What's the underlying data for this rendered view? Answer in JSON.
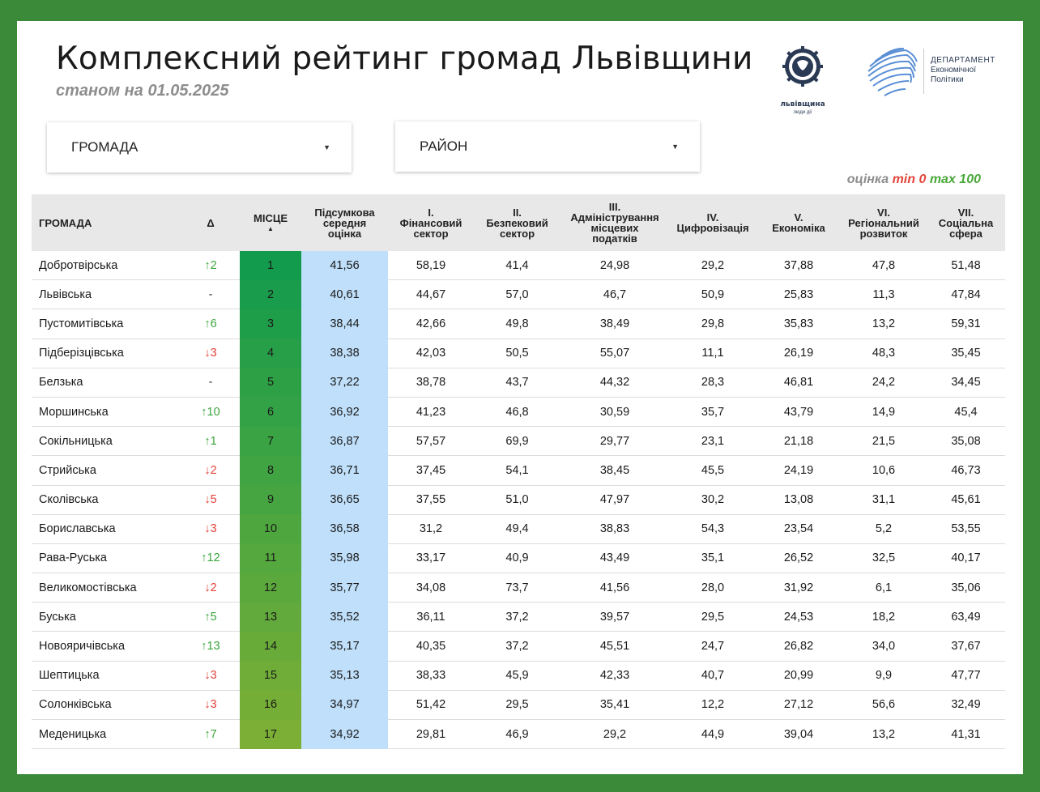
{
  "header": {
    "title": "Комплексний рейтинг громад Львівщини",
    "subtitle": "станом на 01.05.2025",
    "logo_text": "львівщина",
    "logo_subtext": "люди дії",
    "dept": [
      "ДЕПАРТАМЕНТ",
      "Економічної",
      "Політики"
    ]
  },
  "filters": {
    "hromada_label": "ГРОМАДА",
    "raion_label": "РАЙОН"
  },
  "legend": {
    "prefix": "оцінка",
    "min_text": "min 0",
    "max_text": "max 100"
  },
  "colors": {
    "background": "#3a8a3a",
    "avg_column": "#bfdffa",
    "place_top": "#129b4c",
    "place_bottom": "#7caf35",
    "arrow_up": "#3aa43a",
    "arrow_down": "#e0443a"
  },
  "table": {
    "headers": {
      "name": "ГРОМАДА",
      "delta": "Δ",
      "place": "МІСЦЕ",
      "avg": [
        "Підсумкова",
        "середня",
        "оцінка"
      ],
      "c1": [
        "I.",
        "Фінансовий",
        "сектор"
      ],
      "c2": [
        "II.",
        "Безпековий",
        "сектор"
      ],
      "c3": [
        "III.",
        "Адміністрування",
        "місцевих",
        "податків"
      ],
      "c4": [
        "IV.",
        "Цифровізація"
      ],
      "c5": [
        "V.",
        "Економіка"
      ],
      "c6": [
        "VI.",
        "Регіональний",
        "розвиток"
      ],
      "c7": [
        "VII.",
        "Соціальна",
        "сфера"
      ]
    },
    "rows": [
      {
        "name": "Добротвірська",
        "delta": "↑2",
        "dir": "up",
        "place": "1",
        "avg": "41,56",
        "c1": "58,19",
        "c2": "41,4",
        "c3": "24,98",
        "c4": "29,2",
        "c5": "37,88",
        "c6": "47,8",
        "c7": "51,48"
      },
      {
        "name": "Львівська",
        "delta": "-",
        "dir": "same",
        "place": "2",
        "avg": "40,61",
        "c1": "44,67",
        "c2": "57,0",
        "c3": "46,7",
        "c4": "50,9",
        "c5": "25,83",
        "c6": "11,3",
        "c7": "47,84"
      },
      {
        "name": "Пустомитівська",
        "delta": "↑6",
        "dir": "up",
        "place": "3",
        "avg": "38,44",
        "c1": "42,66",
        "c2": "49,8",
        "c3": "38,49",
        "c4": "29,8",
        "c5": "35,83",
        "c6": "13,2",
        "c7": "59,31"
      },
      {
        "name": "Підберізцівська",
        "delta": "↓3",
        "dir": "down",
        "place": "4",
        "avg": "38,38",
        "c1": "42,03",
        "c2": "50,5",
        "c3": "55,07",
        "c4": "11,1",
        "c5": "26,19",
        "c6": "48,3",
        "c7": "35,45"
      },
      {
        "name": "Белзька",
        "delta": "-",
        "dir": "same",
        "place": "5",
        "avg": "37,22",
        "c1": "38,78",
        "c2": "43,7",
        "c3": "44,32",
        "c4": "28,3",
        "c5": "46,81",
        "c6": "24,2",
        "c7": "34,45"
      },
      {
        "name": "Моршинська",
        "delta": "↑10",
        "dir": "up",
        "place": "6",
        "avg": "36,92",
        "c1": "41,23",
        "c2": "46,8",
        "c3": "30,59",
        "c4": "35,7",
        "c5": "43,79",
        "c6": "14,9",
        "c7": "45,4"
      },
      {
        "name": "Сокільницька",
        "delta": "↑1",
        "dir": "up",
        "place": "7",
        "avg": "36,87",
        "c1": "57,57",
        "c2": "69,9",
        "c3": "29,77",
        "c4": "23,1",
        "c5": "21,18",
        "c6": "21,5",
        "c7": "35,08"
      },
      {
        "name": "Стрийська",
        "delta": "↓2",
        "dir": "down",
        "place": "8",
        "avg": "36,71",
        "c1": "37,45",
        "c2": "54,1",
        "c3": "38,45",
        "c4": "45,5",
        "c5": "24,19",
        "c6": "10,6",
        "c7": "46,73"
      },
      {
        "name": "Сколівська",
        "delta": "↓5",
        "dir": "down",
        "place": "9",
        "avg": "36,65",
        "c1": "37,55",
        "c2": "51,0",
        "c3": "47,97",
        "c4": "30,2",
        "c5": "13,08",
        "c6": "31,1",
        "c7": "45,61"
      },
      {
        "name": "Бориславська",
        "delta": "↓3",
        "dir": "down",
        "place": "10",
        "avg": "36,58",
        "c1": "31,2",
        "c2": "49,4",
        "c3": "38,83",
        "c4": "54,3",
        "c5": "23,54",
        "c6": "5,2",
        "c7": "53,55"
      },
      {
        "name": "Рава-Руська",
        "delta": "↑12",
        "dir": "up",
        "place": "11",
        "avg": "35,98",
        "c1": "33,17",
        "c2": "40,9",
        "c3": "43,49",
        "c4": "35,1",
        "c5": "26,52",
        "c6": "32,5",
        "c7": "40,17"
      },
      {
        "name": "Великомостівська",
        "delta": "↓2",
        "dir": "down",
        "place": "12",
        "avg": "35,77",
        "c1": "34,08",
        "c2": "73,7",
        "c3": "41,56",
        "c4": "28,0",
        "c5": "31,92",
        "c6": "6,1",
        "c7": "35,06"
      },
      {
        "name": "Буська",
        "delta": "↑5",
        "dir": "up",
        "place": "13",
        "avg": "35,52",
        "c1": "36,11",
        "c2": "37,2",
        "c3": "39,57",
        "c4": "29,5",
        "c5": "24,53",
        "c6": "18,2",
        "c7": "63,49"
      },
      {
        "name": "Новояричівська",
        "delta": "↑13",
        "dir": "up",
        "place": "14",
        "avg": "35,17",
        "c1": "40,35",
        "c2": "37,2",
        "c3": "45,51",
        "c4": "24,7",
        "c5": "26,82",
        "c6": "34,0",
        "c7": "37,67"
      },
      {
        "name": "Шептицька",
        "delta": "↓3",
        "dir": "down",
        "place": "15",
        "avg": "35,13",
        "c1": "38,33",
        "c2": "45,9",
        "c3": "42,33",
        "c4": "40,7",
        "c5": "20,99",
        "c6": "9,9",
        "c7": "47,77"
      },
      {
        "name": "Солонківська",
        "delta": "↓3",
        "dir": "down",
        "place": "16",
        "avg": "34,97",
        "c1": "51,42",
        "c2": "29,5",
        "c3": "35,41",
        "c4": "12,2",
        "c5": "27,12",
        "c6": "56,6",
        "c7": "32,49"
      },
      {
        "name": "Меденицька",
        "delta": "↑7",
        "dir": "up",
        "place": "17",
        "avg": "34,92",
        "c1": "29,81",
        "c2": "46,9",
        "c3": "29,2",
        "c4": "44,9",
        "c5": "39,04",
        "c6": "13,2",
        "c7": "41,31"
      }
    ]
  }
}
